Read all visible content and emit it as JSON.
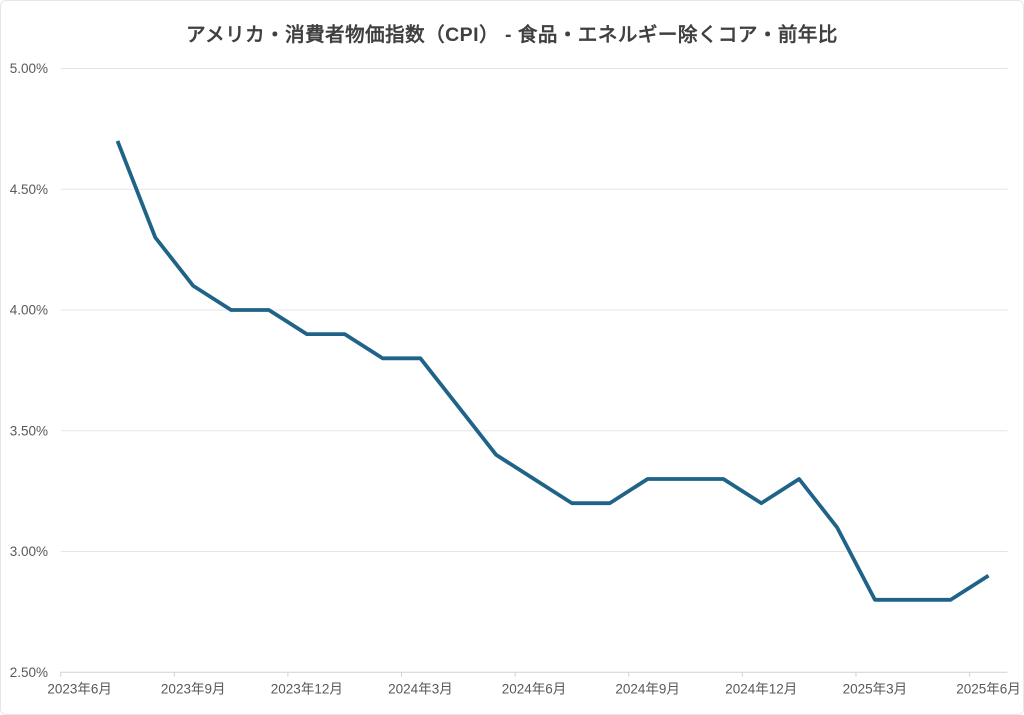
{
  "chart_data": {
    "type": "line",
    "title": "アメリカ・消費者物価指数（CPI） - 食品・エネルギー除くコア・前年比",
    "x": [
      "2023年7月",
      "2023年8月",
      "2023年9月",
      "2023年10月",
      "2023年11月",
      "2023年12月",
      "2024年1月",
      "2024年2月",
      "2024年3月",
      "2024年4月",
      "2024年5月",
      "2024年6月",
      "2024年7月",
      "2024年8月",
      "2024年9月",
      "2024年10月",
      "2024年11月",
      "2024年12月",
      "2025年1月",
      "2025年2月",
      "2025年3月",
      "2025年4月",
      "2025年5月",
      "2025年6月"
    ],
    "values": [
      4.7,
      4.3,
      4.1,
      4.0,
      4.0,
      3.9,
      3.9,
      3.8,
      3.8,
      3.6,
      3.4,
      3.3,
      3.2,
      3.2,
      3.3,
      3.3,
      3.3,
      3.2,
      3.3,
      3.1,
      2.8,
      2.8,
      2.8,
      2.9
    ],
    "ylabel": "",
    "xlabel": "",
    "x_axis": {
      "start": "2023年6月",
      "tick_labels": [
        "2023年6月",
        "2023年9月",
        "2023年12月",
        "2024年3月",
        "2024年6月",
        "2024年9月",
        "2024年12月",
        "2025年3月",
        "2025年6月"
      ],
      "months_per_tick": 3,
      "total_months": 25,
      "first_point_offset_months": 1
    },
    "y_axis": {
      "tick_labels": [
        "5.00%",
        "4.50%",
        "4.00%",
        "3.50%",
        "3.00%",
        "2.50%"
      ],
      "tick_values": [
        5.0,
        4.5,
        4.0,
        3.5,
        3.0,
        2.5
      ],
      "min": 2.5,
      "max": 5.0,
      "unit": "%"
    },
    "grid": "horizontal",
    "legend": "none",
    "colors": {
      "line": "#1f6488",
      "title_text": "#404040",
      "axis_text": "#595959",
      "gridline": "#e5e5e5",
      "axis_line": "#d2d2d2",
      "background": "#ffffff"
    }
  }
}
